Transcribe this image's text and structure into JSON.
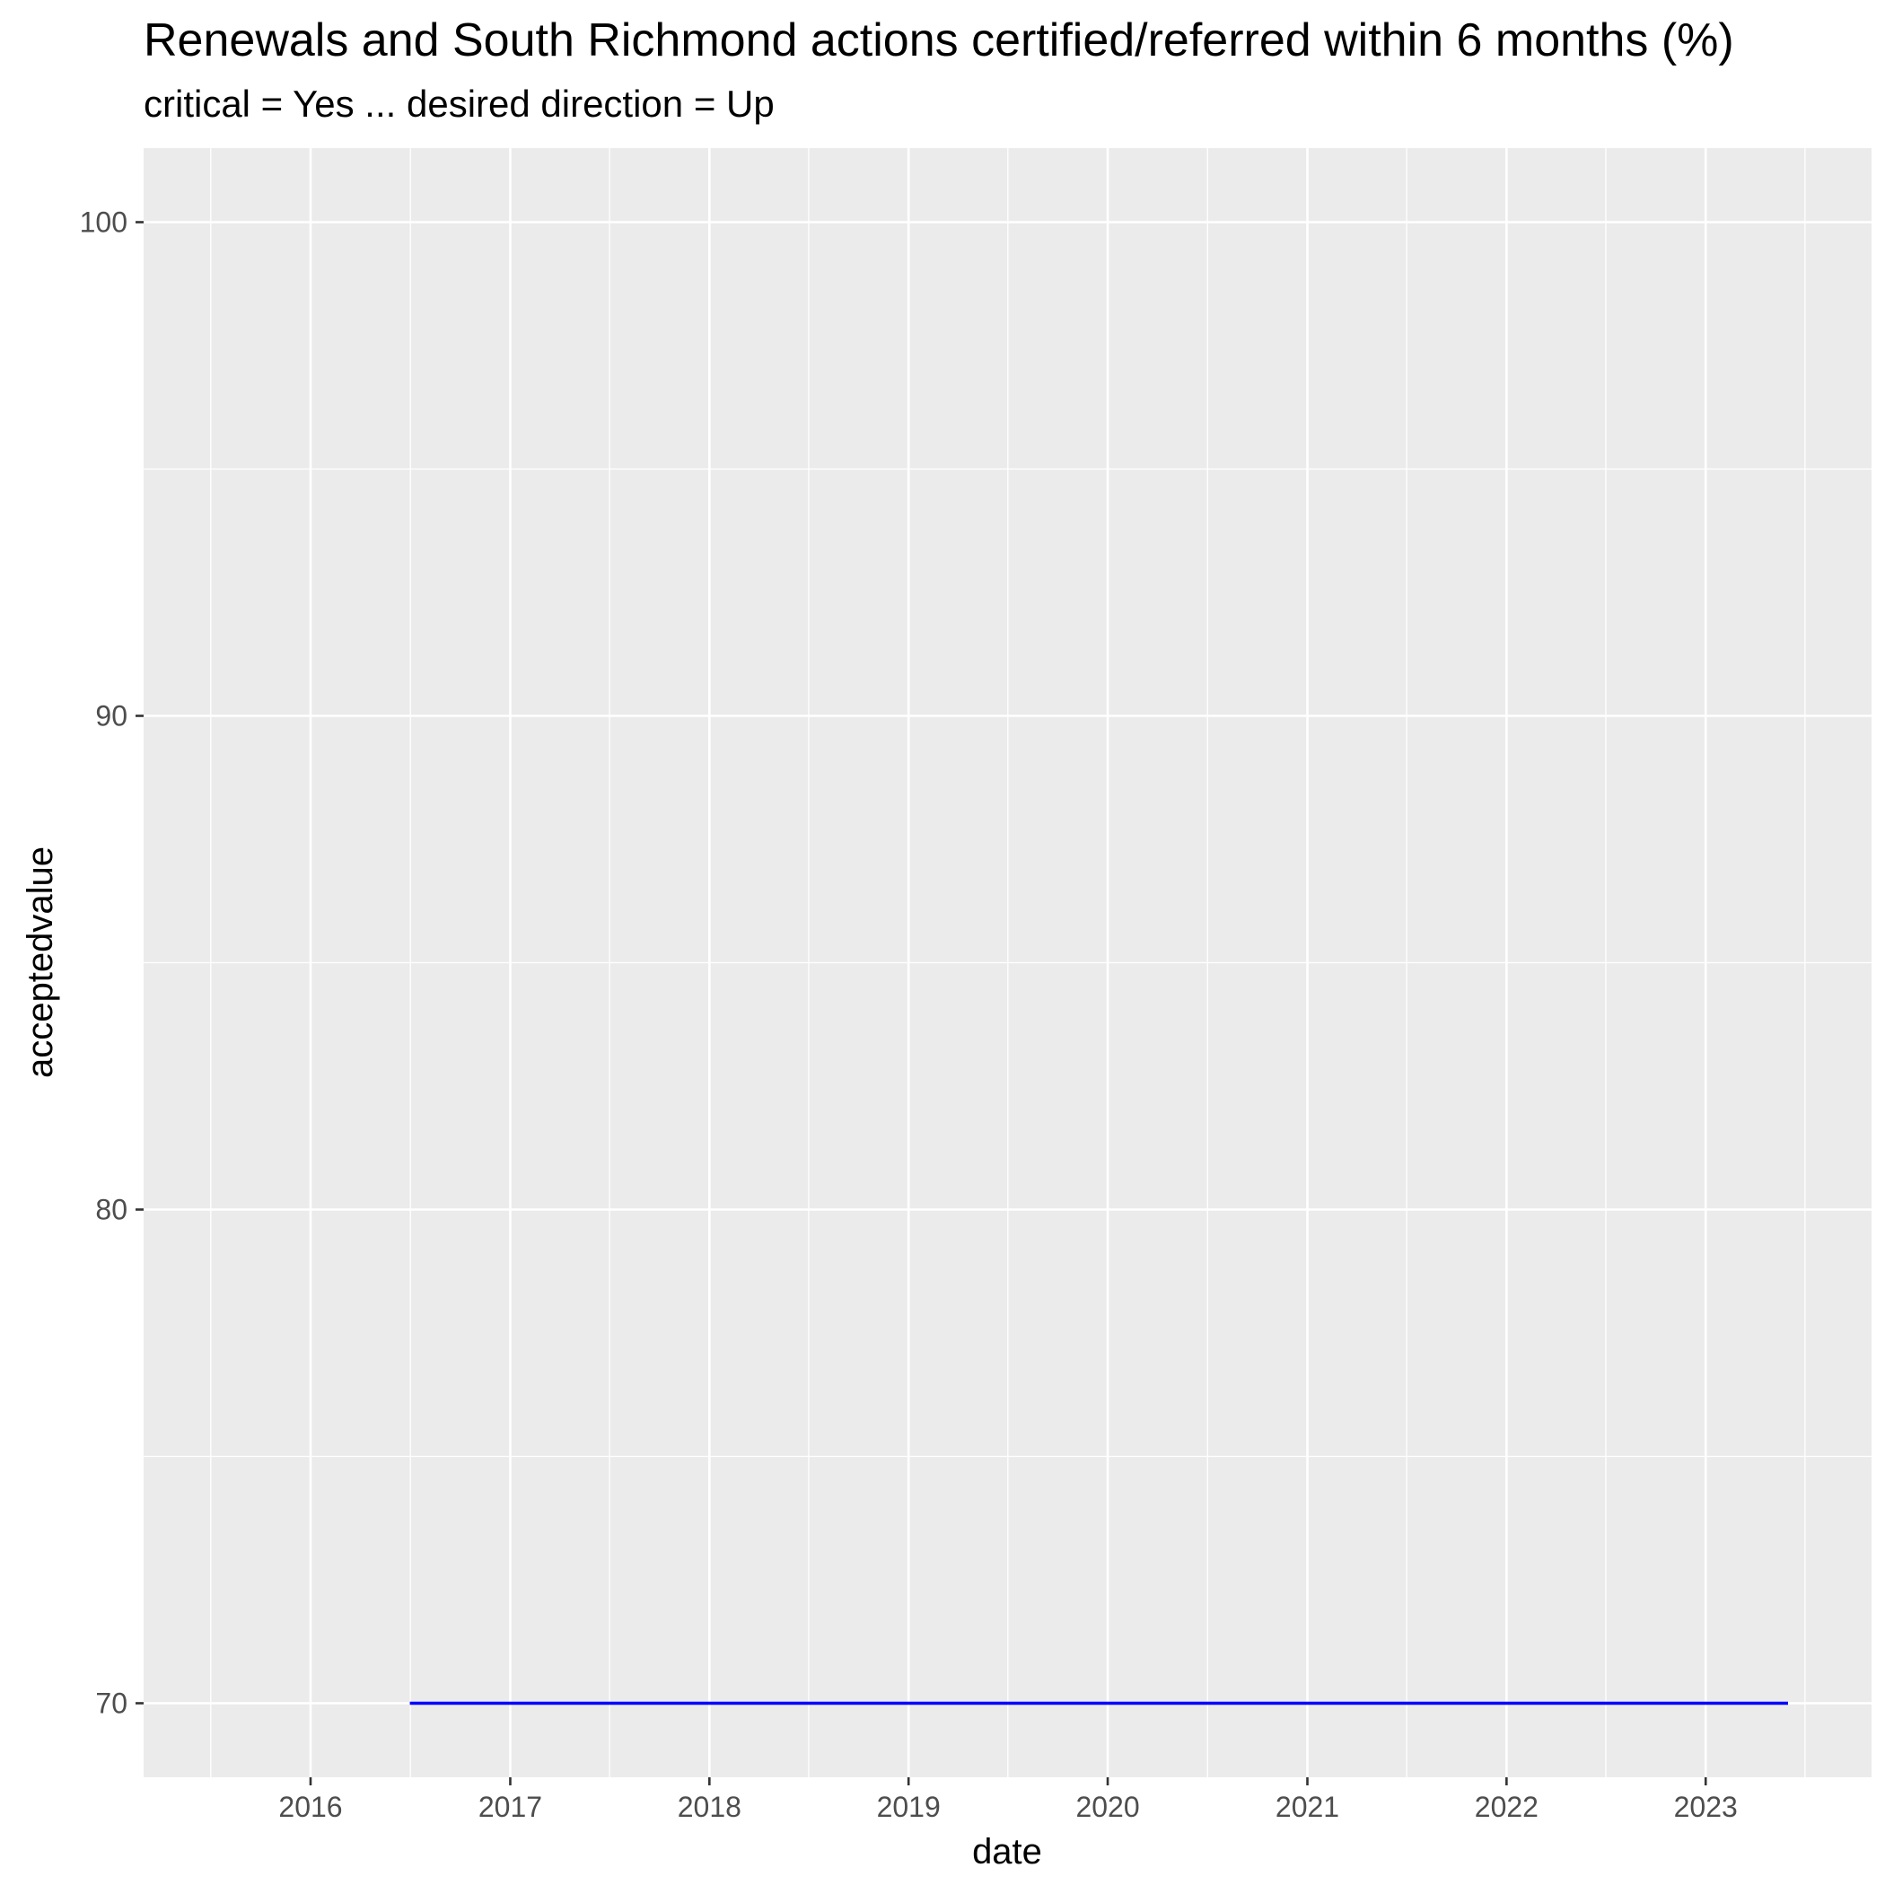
{
  "chart_data": {
    "type": "line",
    "title": "Renewals and South Richmond actions certified/referred within 6 months (%)",
    "subtitle": "critical = Yes ... desired direction = Up",
    "xlabel": "date",
    "ylabel": "acceptedvalue",
    "x_ticks": [
      "2016",
      "2017",
      "2018",
      "2019",
      "2020",
      "2021",
      "2022",
      "2023"
    ],
    "y_ticks": [
      70,
      80,
      90,
      100
    ],
    "xlim": [
      "2015-03-01",
      "2023-11-01"
    ],
    "ylim": [
      68.5,
      101.5
    ],
    "grid": true,
    "panel_background": "#ebebeb",
    "grid_color": "#ffffff",
    "series": [
      {
        "color": "#0000ff",
        "points": [
          {
            "x": "2016-07-01",
            "y": 70
          },
          {
            "x": "2023-06-01",
            "y": 70
          }
        ]
      }
    ]
  }
}
